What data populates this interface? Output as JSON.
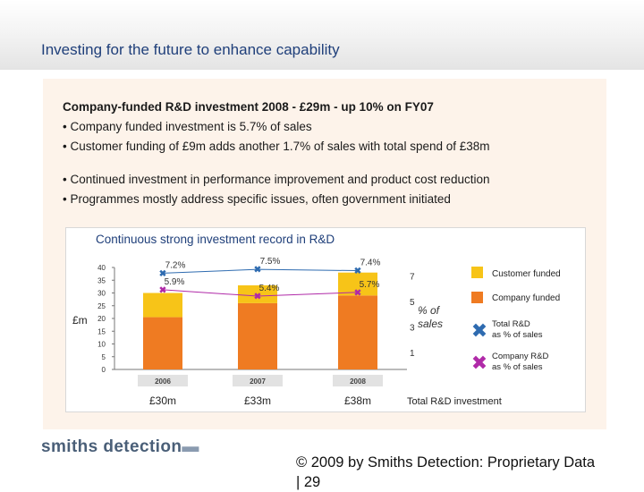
{
  "slide": {
    "title": "Investing for the future to enhance capability",
    "heading": "Company-funded R&D investment 2008 - £29m - up 10% on FY07",
    "bullets_group1": [
      "• Company funded investment is 5.7% of sales",
      "• Customer funding of £9m adds another 1.7% of sales with total spend of £38m"
    ],
    "bullets_group2": [
      "• Continued investment in performance improvement and product cost reduction",
      "• Programmes mostly address specific issues, often government initiated"
    ],
    "chart_title": "Continuous strong investment record in R&D",
    "logo_text": "smiths detection",
    "footer": "© 2009 by Smiths Detection: Proprietary Data | 29",
    "colors": {
      "customer": "#f7c418",
      "company": "#ef7b22",
      "total_line": "#2e6bb0",
      "company_line": "#b02aa8",
      "title_blue": "#1f3f7a"
    }
  },
  "chart_data": {
    "type": "bar",
    "title": "Continuous strong investment record in R&D",
    "categories": [
      "2006",
      "2007",
      "2008"
    ],
    "series": [
      {
        "name": "Company funded",
        "values": [
          20.5,
          26.0,
          29.0
        ]
      },
      {
        "name": "Customer funded",
        "values": [
          9.5,
          7.0,
          9.0
        ]
      }
    ],
    "ylabel": "£m",
    "ylim": [
      0,
      40
    ],
    "yticks": [
      "0",
      "5",
      "10",
      "15",
      "20",
      "25",
      "30",
      "35",
      "40"
    ],
    "y2ticks": [
      "1",
      "3",
      "5",
      "7"
    ],
    "y2label_parts": [
      "% of",
      "sales"
    ],
    "totals": [
      "£30m",
      "£33m",
      "£38m"
    ],
    "totals_caption": "Total R&D investment",
    "lines": [
      {
        "name": "Total R&D as % of sales",
        "values": [
          7.2,
          7.5,
          7.4
        ],
        "labels": [
          "7.2%",
          "7.5%",
          "7.4%"
        ]
      },
      {
        "name": "Company R&D as % of sales",
        "values": [
          5.9,
          5.4,
          5.7
        ],
        "labels": [
          "5.9%",
          "5.4%",
          "5.7%"
        ]
      }
    ],
    "legend": [
      {
        "label": "Customer funded"
      },
      {
        "label": "Company funded"
      },
      {
        "label": "Total R&D",
        "label2": "as % of sales"
      },
      {
        "label": "Company R&D",
        "label2": "as % of sales"
      }
    ],
    "legend_position": "right"
  }
}
